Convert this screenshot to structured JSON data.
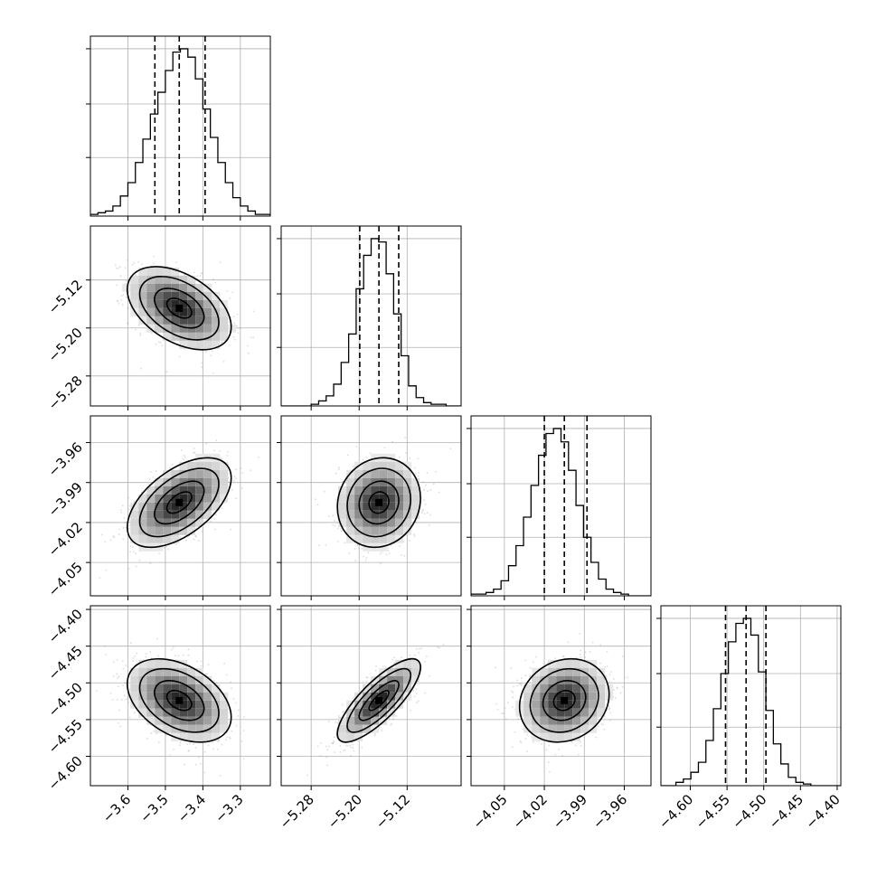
{
  "chart_data": {
    "type": "corner",
    "parameters": 4,
    "colors": {
      "axes": "#000000",
      "grid": "#b0b0b0",
      "contour": "#000000",
      "scatter": "#9a9a9a"
    },
    "grid": true,
    "quantile_lines": "dashed",
    "params": [
      {
        "index": 0,
        "axis_range": [
          -3.7,
          -3.22
        ],
        "ticks": [
          -3.6,
          -3.5,
          -3.4,
          -3.3
        ],
        "tick_labels": [
          "−3.6",
          "−3.5",
          "−3.4",
          "−3.3"
        ],
        "quantiles": [
          -3.528,
          -3.463,
          -3.394
        ],
        "mean": -3.463,
        "sd": 0.066
      },
      {
        "index": 1,
        "axis_range": [
          -5.33,
          -5.03
        ],
        "ticks": [
          -5.28,
          -5.2,
          -5.12
        ],
        "tick_labels": [
          "−5.28",
          "−5.20",
          "−5.12"
        ],
        "quantiles": [
          -5.199,
          -5.167,
          -5.134
        ],
        "mean": -5.167,
        "sd": 0.033
      },
      {
        "index": 2,
        "axis_range": [
          -4.075,
          -3.94
        ],
        "ticks": [
          -4.05,
          -4.02,
          -3.99,
          -3.96
        ],
        "tick_labels": [
          "−4.05",
          "−4.02",
          "−3.99",
          "−3.96"
        ],
        "quantiles": [
          -4.02,
          -4.005,
          -3.988
        ],
        "mean": -4.005,
        "sd": 0.016
      },
      {
        "index": 3,
        "axis_range": [
          -4.64,
          -4.395
        ],
        "ticks": [
          -4.6,
          -4.55,
          -4.5,
          -4.45,
          -4.4
        ],
        "tick_labels": [
          "−4.60",
          "−4.55",
          "−4.50",
          "−4.45",
          "−4.40"
        ],
        "quantiles": [
          -4.552,
          -4.524,
          -4.497
        ],
        "mean": -4.524,
        "sd": 0.027
      }
    ],
    "correlations": {
      "1-0": -0.45,
      "2-0": 0.55,
      "2-1": 0.1,
      "3-0": -0.4,
      "3-1": 0.8,
      "3-2": 0.15
    },
    "marginal_hist_counts": [
      [
        1,
        2,
        3,
        6,
        12,
        20,
        32,
        46,
        61,
        74,
        87,
        98,
        100,
        95,
        82,
        64,
        47,
        32,
        20,
        11,
        6,
        3,
        1,
        1
      ],
      [
        0,
        0,
        0,
        0,
        1,
        3,
        6,
        13,
        26,
        43,
        70,
        90,
        100,
        98,
        79,
        55,
        30,
        12,
        5,
        2,
        1,
        1,
        0,
        0
      ],
      [
        1,
        1,
        2,
        4,
        9,
        18,
        30,
        47,
        66,
        84,
        97,
        100,
        92,
        75,
        54,
        35,
        20,
        10,
        4,
        2,
        1,
        0,
        0,
        0
      ],
      [
        0,
        0,
        2,
        4,
        8,
        14,
        27,
        46,
        67,
        86,
        97,
        100,
        90,
        68,
        45,
        25,
        13,
        5,
        2,
        1,
        0,
        0,
        0,
        0
      ]
    ]
  }
}
